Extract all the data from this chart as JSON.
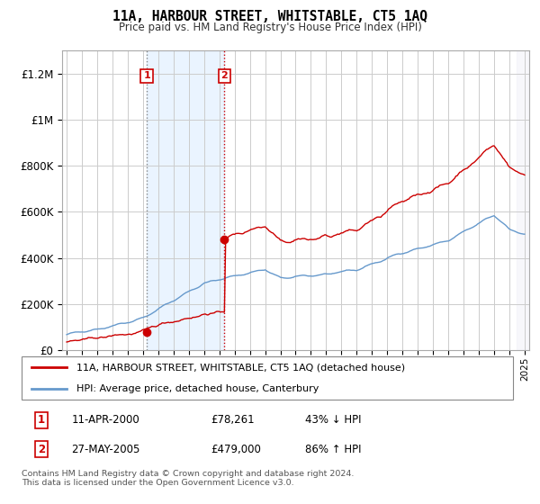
{
  "title": "11A, HARBOUR STREET, WHITSTABLE, CT5 1AQ",
  "subtitle": "Price paid vs. HM Land Registry's House Price Index (HPI)",
  "ylim": [
    0,
    1300000
  ],
  "yticks": [
    0,
    200000,
    400000,
    600000,
    800000,
    1000000,
    1200000
  ],
  "ytick_labels": [
    "£0",
    "£200K",
    "£400K",
    "£600K",
    "£800K",
    "£1M",
    "£1.2M"
  ],
  "background_color": "#ffffff",
  "plot_bg_color": "#ffffff",
  "grid_color": "#cccccc",
  "sale1_year": 2000,
  "sale1_month": 4,
  "sale1_price": 78261,
  "sale2_year": 2005,
  "sale2_month": 5,
  "sale2_price": 479000,
  "sale1_label": "1",
  "sale2_label": "2",
  "sale1_text": "11-APR-2000",
  "sale1_amount": "£78,261",
  "sale1_hpi": "43% ↓ HPI",
  "sale2_text": "27-MAY-2005",
  "sale2_amount": "£479,000",
  "sale2_hpi": "86% ↑ HPI",
  "legend_line1": "11A, HARBOUR STREET, WHITSTABLE, CT5 1AQ (detached house)",
  "legend_line2": "HPI: Average price, detached house, Canterbury",
  "footnote": "Contains HM Land Registry data © Crown copyright and database right 2024.\nThis data is licensed under the Open Government Licence v3.0.",
  "hpi_color": "#6699cc",
  "price_color": "#cc0000",
  "shade_color": "#ddeeff",
  "xmin": 1994.7,
  "xmax": 2025.3,
  "start_year": 1995,
  "end_year": 2025,
  "n_months": 361
}
